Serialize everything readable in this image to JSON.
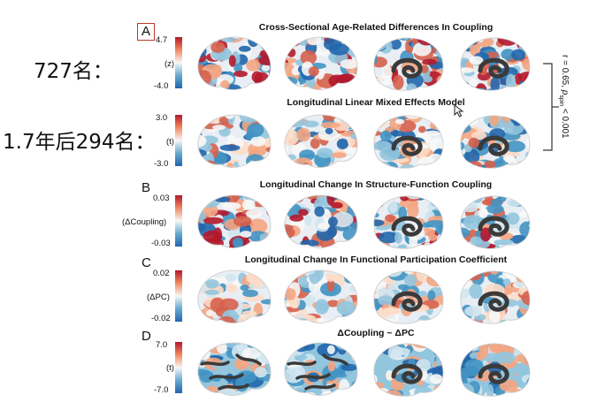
{
  "annotations": {
    "count_baseline": "727名：",
    "count_followup": "1.7年后294名："
  },
  "panels": [
    {
      "letter": "A",
      "title": "Cross-Sectional Age-Related Differences In Coupling",
      "cmax": "4.7",
      "cmin": "-4.0",
      "unit": "(z)"
    },
    {
      "letter": "",
      "title": "Longitudinal Linear Mixed Effects Model",
      "cmax": "3.0",
      "cmin": "-3.0",
      "unit": "(t)"
    },
    {
      "letter": "B",
      "title": "Longitudinal Change In Structure-Function Coupling",
      "cmax": "0.03",
      "cmin": "-0.03",
      "unit": "(ΔCoupling)"
    },
    {
      "letter": "C",
      "title": "Longitudinal Change In Functional Participation Coefficient",
      "cmax": "0.02",
      "cmin": "-0.02",
      "unit": "(ΔPC)"
    },
    {
      "letter": "D",
      "title": "ΔCoupling ~ ΔPC",
      "cmax": "7.0",
      "cmin": "-7.0",
      "unit": "(t)"
    }
  ],
  "stat_text": "r = 0.65, p_spin < 0.001",
  "colors": {
    "red": "#b2182b",
    "blue": "#2166ac",
    "white": "#f7f7f7",
    "accent_box": "#c0392b"
  }
}
